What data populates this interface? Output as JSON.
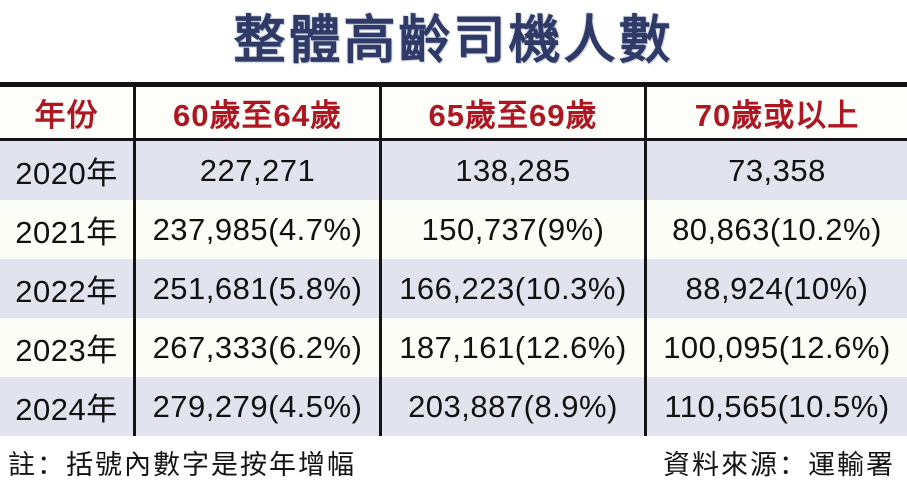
{
  "title": "整體高齡司機人數",
  "table": {
    "headers": [
      "年份",
      "60歲至64歲",
      "65歲至69歲",
      "70歲或以上"
    ],
    "rows": [
      {
        "year": "2020年",
        "cells": [
          "227,271",
          "138,285",
          "73,358"
        ]
      },
      {
        "year": "2021年",
        "cells": [
          "237,985(4.7%)",
          "150,737(9%)",
          "80,863(10.2%)"
        ]
      },
      {
        "year": "2022年",
        "cells": [
          "251,681(5.8%)",
          "166,223(10.3%)",
          "88,924(10%)"
        ]
      },
      {
        "year": "2023年",
        "cells": [
          "267,333(6.2%)",
          "187,161(12.6%)",
          "100,095(12.6%)"
        ]
      },
      {
        "year": "2024年",
        "cells": [
          "279,279(4.5%)",
          "203,887(8.9%)",
          "110,565(10.5%)"
        ]
      }
    ]
  },
  "footer": {
    "note": "註：括號內數字是按年增幅",
    "source": "資料來源：運輸署"
  },
  "colors": {
    "title_navy": "#2f3b66",
    "header_red": "#ae1722",
    "row_shade_lavender": "#e3e3ef",
    "row_plain": "#fdfdf8",
    "border_black": "#141414"
  },
  "chart_data": {
    "type": "table",
    "title": "整體高齡司機人數",
    "columns": [
      "年份",
      "60歲至64歲",
      "65歲至69歲",
      "70歲或以上"
    ],
    "rows": [
      [
        "2020年",
        "227,271",
        "138,285",
        "73,358"
      ],
      [
        "2021年",
        "237,985(4.7%)",
        "150,737(9%)",
        "80,863(10.2%)"
      ],
      [
        "2022年",
        "251,681(5.8%)",
        "166,223(10.3%)",
        "88,924(10%)"
      ],
      [
        "2023年",
        "267,333(6.2%)",
        "187,161(12.6%)",
        "100,095(12.6%)"
      ],
      [
        "2024年",
        "279,279(4.5%)",
        "203,887(8.9%)",
        "110,565(10.5%)"
      ]
    ],
    "series": [
      {
        "name": "60歲至64歲",
        "values": [
          227271,
          237985,
          251681,
          267333,
          279279
        ],
        "yoy_growth_pct": [
          null,
          4.7,
          5.8,
          6.2,
          4.5
        ]
      },
      {
        "name": "65歲至69歲",
        "values": [
          138285,
          150737,
          166223,
          187161,
          203887
        ],
        "yoy_growth_pct": [
          null,
          9,
          10.3,
          12.6,
          8.9
        ]
      },
      {
        "name": "70歲或以上",
        "values": [
          73358,
          80863,
          88924,
          100095,
          110565
        ],
        "yoy_growth_pct": [
          null,
          10.2,
          10,
          12.6,
          10.5
        ]
      }
    ],
    "categories": [
      "2020",
      "2021",
      "2022",
      "2023",
      "2024"
    ],
    "note": "註：括號內數字是按年增幅",
    "source": "資料來源：運輸署"
  }
}
